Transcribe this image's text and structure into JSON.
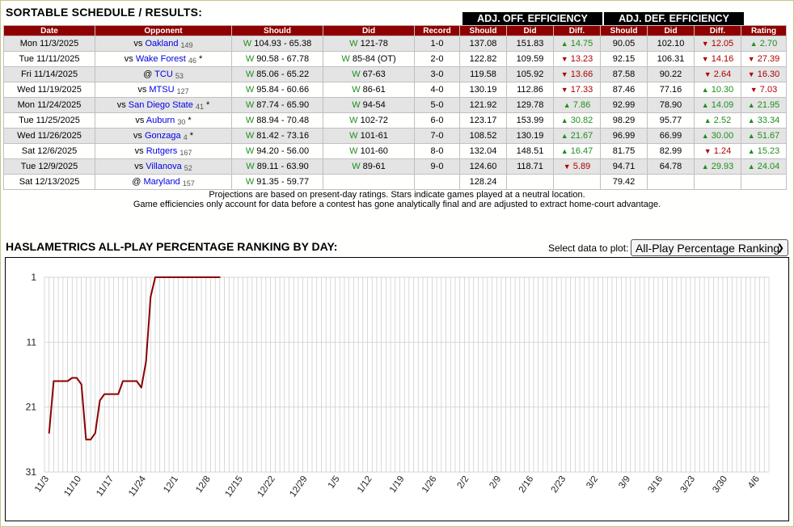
{
  "schedule": {
    "title": "SORTABLE SCHEDULE / RESULTS:",
    "group_off": "ADJ. OFF. EFFICIENCY",
    "group_def": "ADJ. DEF. EFFICIENCY",
    "headers": {
      "date": "Date",
      "opponent": "Opponent",
      "should": "Should",
      "did": "Did",
      "record": "Record",
      "off_should": "Should",
      "off_did": "Did",
      "off_diff": "Diff.",
      "def_should": "Should",
      "def_did": "Did",
      "def_diff": "Diff.",
      "rating": "Rating"
    },
    "rows": [
      {
        "date": "Mon 11/3/2025",
        "loc": "vs",
        "opp": "Oakland",
        "rank": "149",
        "star": "",
        "should_r": "W",
        "should": "104.93 - 65.38",
        "did_r": "W",
        "did": "121-78",
        "record": "1-0",
        "off_should": "137.08",
        "off_did": "151.83",
        "off_diff": "14.75",
        "off_dir": "up",
        "def_should": "90.05",
        "def_did": "102.10",
        "def_diff": "12.05",
        "def_dir": "dn",
        "rating": "2.70",
        "rating_dir": "up"
      },
      {
        "date": "Tue 11/11/2025",
        "loc": "vs",
        "opp": "Wake Forest",
        "rank": "46",
        "star": "*",
        "should_r": "W",
        "should": "90.58 - 67.78",
        "did_r": "W",
        "did": "85-84 (OT)",
        "record": "2-0",
        "off_should": "122.82",
        "off_did": "109.59",
        "off_diff": "13.23",
        "off_dir": "dn",
        "def_should": "92.15",
        "def_did": "106.31",
        "def_diff": "14.16",
        "def_dir": "dn",
        "rating": "27.39",
        "rating_dir": "dn"
      },
      {
        "date": "Fri 11/14/2025",
        "loc": "@",
        "opp": "TCU",
        "rank": "53",
        "star": "",
        "should_r": "W",
        "should": "85.06 - 65.22",
        "did_r": "W",
        "did": "67-63",
        "record": "3-0",
        "off_should": "119.58",
        "off_did": "105.92",
        "off_diff": "13.66",
        "off_dir": "dn",
        "def_should": "87.58",
        "def_did": "90.22",
        "def_diff": "2.64",
        "def_dir": "dn",
        "rating": "16.30",
        "rating_dir": "dn"
      },
      {
        "date": "Wed 11/19/2025",
        "loc": "vs",
        "opp": "MTSU",
        "rank": "127",
        "star": "",
        "should_r": "W",
        "should": "95.84 - 60.66",
        "did_r": "W",
        "did": "86-61",
        "record": "4-0",
        "off_should": "130.19",
        "off_did": "112.86",
        "off_diff": "17.33",
        "off_dir": "dn",
        "def_should": "87.46",
        "def_did": "77.16",
        "def_diff": "10.30",
        "def_dir": "up",
        "rating": "7.03",
        "rating_dir": "dn"
      },
      {
        "date": "Mon 11/24/2025",
        "loc": "vs",
        "opp": "San Diego State",
        "rank": "41",
        "star": "*",
        "should_r": "W",
        "should": "87.74 - 65.90",
        "did_r": "W",
        "did": "94-54",
        "record": "5-0",
        "off_should": "121.92",
        "off_did": "129.78",
        "off_diff": "7.86",
        "off_dir": "up",
        "def_should": "92.99",
        "def_did": "78.90",
        "def_diff": "14.09",
        "def_dir": "up",
        "rating": "21.95",
        "rating_dir": "up"
      },
      {
        "date": "Tue 11/25/2025",
        "loc": "vs",
        "opp": "Auburn",
        "rank": "30",
        "star": "*",
        "should_r": "W",
        "should": "88.94 - 70.48",
        "did_r": "W",
        "did": "102-72",
        "record": "6-0",
        "off_should": "123.17",
        "off_did": "153.99",
        "off_diff": "30.82",
        "off_dir": "up",
        "def_should": "98.29",
        "def_did": "95.77",
        "def_diff": "2.52",
        "def_dir": "up",
        "rating": "33.34",
        "rating_dir": "up"
      },
      {
        "date": "Wed 11/26/2025",
        "loc": "vs",
        "opp": "Gonzaga",
        "rank": "4",
        "star": "*",
        "should_r": "W",
        "should": "81.42 - 73.16",
        "did_r": "W",
        "did": "101-61",
        "record": "7-0",
        "off_should": "108.52",
        "off_did": "130.19",
        "off_diff": "21.67",
        "off_dir": "up",
        "def_should": "96.99",
        "def_did": "66.99",
        "def_diff": "30.00",
        "def_dir": "up",
        "rating": "51.67",
        "rating_dir": "up"
      },
      {
        "date": "Sat 12/6/2025",
        "loc": "vs",
        "opp": "Rutgers",
        "rank": "167",
        "star": "",
        "should_r": "W",
        "should": "94.20 - 56.00",
        "did_r": "W",
        "did": "101-60",
        "record": "8-0",
        "off_should": "132.04",
        "off_did": "148.51",
        "off_diff": "16.47",
        "off_dir": "up",
        "def_should": "81.75",
        "def_did": "82.99",
        "def_diff": "1.24",
        "def_dir": "dn",
        "rating": "15.23",
        "rating_dir": "up"
      },
      {
        "date": "Tue 12/9/2025",
        "loc": "vs",
        "opp": "Villanova",
        "rank": "52",
        "star": "",
        "should_r": "W",
        "should": "89.11 - 63.90",
        "did_r": "W",
        "did": "89-61",
        "record": "9-0",
        "off_should": "124.60",
        "off_did": "118.71",
        "off_diff": "5.89",
        "off_dir": "dn",
        "def_should": "94.71",
        "def_did": "64.78",
        "def_diff": "29.93",
        "def_dir": "up",
        "rating": "24.04",
        "rating_dir": "up"
      },
      {
        "date": "Sat 12/13/2025",
        "loc": "@",
        "opp": "Maryland",
        "rank": "157",
        "star": "",
        "should_r": "W",
        "should": "91.35 - 59.77",
        "did_r": "",
        "did": "",
        "record": "",
        "off_should": "128.24",
        "off_did": "",
        "off_diff": "",
        "off_dir": "",
        "def_should": "79.42",
        "def_did": "",
        "def_diff": "",
        "def_dir": "",
        "rating": "",
        "rating_dir": ""
      }
    ],
    "note1": "Projections are based on present-day ratings. Stars indicate games played at a neutral location.",
    "note2": "Game efficiencies only account for data before a contest has gone analytically final and are adjusted to extract home-court advantage."
  },
  "chart_section": {
    "title": "HASLAMETRICS ALL-PLAY PERCENTAGE RANKING BY DAY:",
    "select_label": "Select data to plot:",
    "select_value": "All-Play Percentage Ranking"
  },
  "colors": {
    "header_bg": "#8f0000",
    "line": "#8b0000",
    "win": "#1e8f1e",
    "loss_arrow": "#b00000",
    "link": "#0000e6"
  },
  "chart_data": {
    "type": "line",
    "title": "",
    "xlabel": "",
    "ylabel": "",
    "x_ticks": [
      "11/3",
      "11/10",
      "11/17",
      "11/24",
      "12/1",
      "12/8",
      "12/15",
      "12/22",
      "12/29",
      "1/5",
      "1/12",
      "1/19",
      "1/26",
      "2/2",
      "2/9",
      "2/16",
      "2/23",
      "3/2",
      "3/9",
      "3/16",
      "3/23",
      "3/30",
      "4/6"
    ],
    "y_ticks": [
      1,
      11,
      21,
      31
    ],
    "ylim": [
      1,
      31
    ],
    "y_inverted": true,
    "xlim": [
      "11/2",
      "4/8"
    ],
    "grid": "vertical-daily and horizontal",
    "series": [
      {
        "name": "",
        "x": [
          "11/3",
          "11/4",
          "11/5",
          "11/6",
          "11/7",
          "11/8",
          "11/9",
          "11/10",
          "11/11",
          "11/12",
          "11/13",
          "11/14",
          "11/15",
          "11/16",
          "11/17",
          "11/18",
          "11/19",
          "11/20",
          "11/21",
          "11/22",
          "11/23",
          "11/24",
          "11/25",
          "11/26",
          "11/27",
          "11/28",
          "11/29",
          "11/30",
          "12/1",
          "12/2",
          "12/3",
          "12/4",
          "12/5",
          "12/6",
          "12/7",
          "12/8",
          "12/9",
          "12/10"
        ],
        "values": [
          25,
          17,
          17,
          17,
          17,
          16.5,
          16.5,
          17.5,
          26,
          26,
          25,
          20,
          19,
          19,
          19,
          19,
          17,
          17,
          17,
          17,
          18,
          14,
          4,
          1,
          1,
          1,
          1,
          1,
          1,
          1,
          1,
          1,
          1,
          1,
          1,
          1,
          1,
          1
        ]
      }
    ]
  }
}
